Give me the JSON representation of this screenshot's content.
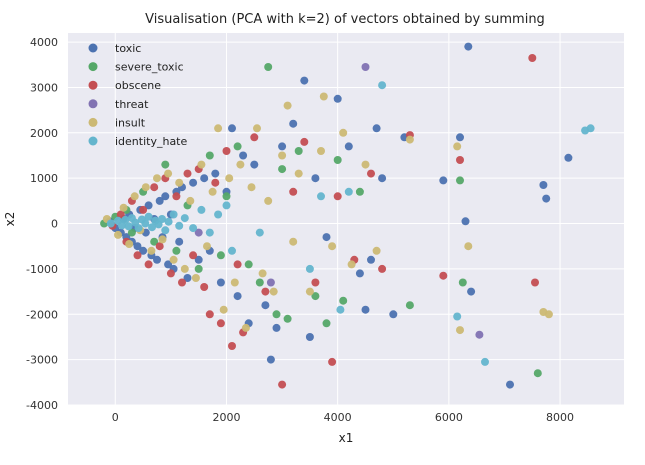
{
  "chart_data": {
    "type": "scatter",
    "title": "Visualisation (PCA with k=2) of vectors obtained by summing",
    "xlabel": "x1",
    "ylabel": "x2",
    "xlim": [
      -850,
      9150
    ],
    "ylim": [
      -4000,
      4200
    ],
    "xticks": [
      0,
      2000,
      4000,
      6000,
      8000
    ],
    "yticks": [
      -4000,
      -3000,
      -2000,
      -1000,
      0,
      1000,
      2000,
      3000,
      4000
    ],
    "grid": true,
    "background": "#eaeaf2",
    "legend_position": "top-left",
    "series": [
      {
        "name": "toxic",
        "color": "#4c72b0",
        "points": [
          [
            -100,
            50
          ],
          [
            0,
            -100
          ],
          [
            100,
            -200
          ],
          [
            150,
            100
          ],
          [
            200,
            -300
          ],
          [
            250,
            200
          ],
          [
            300,
            -400
          ],
          [
            350,
            -100
          ],
          [
            400,
            -500
          ],
          [
            450,
            300
          ],
          [
            500,
            -600
          ],
          [
            550,
            -200
          ],
          [
            600,
            400
          ],
          [
            650,
            -700
          ],
          [
            700,
            100
          ],
          [
            750,
            -800
          ],
          [
            800,
            500
          ],
          [
            850,
            -300
          ],
          [
            900,
            600
          ],
          [
            950,
            -900
          ],
          [
            1000,
            200
          ],
          [
            1050,
            -1000
          ],
          [
            1100,
            700
          ],
          [
            1150,
            -400
          ],
          [
            1200,
            800
          ],
          [
            1300,
            -1200
          ],
          [
            1400,
            900
          ],
          [
            1500,
            -800
          ],
          [
            1600,
            1000
          ],
          [
            1700,
            -600
          ],
          [
            1800,
            1100
          ],
          [
            1900,
            -1300
          ],
          [
            2000,
            700
          ],
          [
            2100,
            2100
          ],
          [
            2200,
            -1600
          ],
          [
            2300,
            1500
          ],
          [
            2400,
            -2200
          ],
          [
            2500,
            1300
          ],
          [
            2700,
            -1800
          ],
          [
            2800,
            -3000
          ],
          [
            2900,
            -2300
          ],
          [
            3000,
            1700
          ],
          [
            3200,
            2200
          ],
          [
            3400,
            3150
          ],
          [
            3500,
            -2500
          ],
          [
            3600,
            1000
          ],
          [
            3800,
            -300
          ],
          [
            4000,
            2750
          ],
          [
            4200,
            1700
          ],
          [
            4400,
            -1100
          ],
          [
            4500,
            -1900
          ],
          [
            4600,
            -800
          ],
          [
            4700,
            2100
          ],
          [
            4800,
            1000
          ],
          [
            5000,
            -2000
          ],
          [
            5200,
            1900
          ],
          [
            5900,
            950
          ],
          [
            6200,
            1900
          ],
          [
            6300,
            50
          ],
          [
            6350,
            3900
          ],
          [
            6400,
            -1500
          ],
          [
            7100,
            -3550
          ],
          [
            7700,
            850
          ],
          [
            7750,
            550
          ],
          [
            8150,
            1450
          ]
        ]
      },
      {
        "name": "severe_toxic",
        "color": "#55a868",
        "points": [
          [
            -200,
            0
          ],
          [
            0,
            150
          ],
          [
            200,
            300
          ],
          [
            300,
            -200
          ],
          [
            500,
            700
          ],
          [
            700,
            -400
          ],
          [
            900,
            1300
          ],
          [
            1100,
            -600
          ],
          [
            1300,
            400
          ],
          [
            1500,
            -1000
          ],
          [
            1700,
            1500
          ],
          [
            1900,
            -700
          ],
          [
            2000,
            600
          ],
          [
            2200,
            1700
          ],
          [
            2400,
            -900
          ],
          [
            2600,
            -1300
          ],
          [
            2750,
            3450
          ],
          [
            2900,
            -2000
          ],
          [
            3000,
            1200
          ],
          [
            3100,
            -2100
          ],
          [
            3300,
            1600
          ],
          [
            3600,
            -1600
          ],
          [
            3800,
            -2200
          ],
          [
            4000,
            1400
          ],
          [
            4100,
            -1700
          ],
          [
            4400,
            700
          ],
          [
            5300,
            -1800
          ],
          [
            6200,
            950
          ],
          [
            6250,
            -1300
          ],
          [
            7600,
            -3300
          ]
        ]
      },
      {
        "name": "obscene",
        "color": "#c44e52",
        "points": [
          [
            -50,
            -50
          ],
          [
            100,
            200
          ],
          [
            200,
            -400
          ],
          [
            300,
            500
          ],
          [
            400,
            -700
          ],
          [
            500,
            300
          ],
          [
            600,
            -900
          ],
          [
            700,
            800
          ],
          [
            800,
            -500
          ],
          [
            900,
            1000
          ],
          [
            1000,
            -1100
          ],
          [
            1100,
            600
          ],
          [
            1200,
            -1300
          ],
          [
            1300,
            1100
          ],
          [
            1400,
            -700
          ],
          [
            1500,
            1200
          ],
          [
            1600,
            -1400
          ],
          [
            1700,
            -2000
          ],
          [
            1800,
            900
          ],
          [
            1900,
            -2200
          ],
          [
            2000,
            1600
          ],
          [
            2100,
            -2700
          ],
          [
            2200,
            -900
          ],
          [
            2300,
            -2400
          ],
          [
            2500,
            1900
          ],
          [
            2700,
            -1500
          ],
          [
            3000,
            -3550
          ],
          [
            3200,
            700
          ],
          [
            3400,
            1800
          ],
          [
            3600,
            -1300
          ],
          [
            3900,
            -3050
          ],
          [
            4000,
            600
          ],
          [
            4300,
            -800
          ],
          [
            4600,
            1100
          ],
          [
            4800,
            -1000
          ],
          [
            5300,
            1950
          ],
          [
            5900,
            -1150
          ],
          [
            6200,
            1400
          ],
          [
            7500,
            3650
          ],
          [
            7550,
            -1300
          ]
        ]
      },
      {
        "name": "threat",
        "color": "#8172b2",
        "points": [
          [
            1500,
            -200
          ],
          [
            2800,
            -1300
          ],
          [
            4500,
            3450
          ],
          [
            6550,
            -2450
          ]
        ]
      },
      {
        "name": "insult",
        "color": "#ccb974",
        "points": [
          [
            -150,
            100
          ],
          [
            50,
            -250
          ],
          [
            150,
            350
          ],
          [
            250,
            -450
          ],
          [
            350,
            600
          ],
          [
            450,
            -150
          ],
          [
            550,
            800
          ],
          [
            650,
            -600
          ],
          [
            750,
            1000
          ],
          [
            850,
            -350
          ],
          [
            950,
            1100
          ],
          [
            1050,
            -800
          ],
          [
            1150,
            900
          ],
          [
            1250,
            -1000
          ],
          [
            1350,
            500
          ],
          [
            1450,
            -1200
          ],
          [
            1550,
            1300
          ],
          [
            1650,
            -500
          ],
          [
            1750,
            700
          ],
          [
            1850,
            2100
          ],
          [
            1950,
            -1900
          ],
          [
            2050,
            1000
          ],
          [
            2150,
            -1300
          ],
          [
            2250,
            1300
          ],
          [
            2350,
            -2300
          ],
          [
            2450,
            800
          ],
          [
            2550,
            2100
          ],
          [
            2650,
            -1100
          ],
          [
            2750,
            500
          ],
          [
            2850,
            -1500
          ],
          [
            3000,
            1500
          ],
          [
            3100,
            2600
          ],
          [
            3200,
            -400
          ],
          [
            3300,
            1100
          ],
          [
            3500,
            -1500
          ],
          [
            3700,
            1600
          ],
          [
            3750,
            2800
          ],
          [
            3900,
            -500
          ],
          [
            4100,
            2000
          ],
          [
            4250,
            -900
          ],
          [
            4500,
            1300
          ],
          [
            4700,
            -600
          ],
          [
            5300,
            1850
          ],
          [
            6150,
            1700
          ],
          [
            6200,
            -2350
          ],
          [
            6350,
            -500
          ],
          [
            7700,
            -1950
          ],
          [
            7800,
            -2000
          ]
        ]
      },
      {
        "name": "identity_hate",
        "color": "#64b5cd",
        "points": [
          [
            -80,
            0
          ],
          [
            50,
            60
          ],
          [
            120,
            -40
          ],
          [
            180,
            80
          ],
          [
            240,
            -60
          ],
          [
            300,
            120
          ],
          [
            360,
            20
          ],
          [
            420,
            -100
          ],
          [
            480,
            90
          ],
          [
            540,
            0
          ],
          [
            600,
            150
          ],
          [
            660,
            -80
          ],
          [
            720,
            60
          ],
          [
            780,
            -20
          ],
          [
            840,
            100
          ],
          [
            900,
            -150
          ],
          [
            960,
            40
          ],
          [
            1050,
            200
          ],
          [
            1150,
            -50
          ],
          [
            1250,
            120
          ],
          [
            1400,
            -100
          ],
          [
            1550,
            300
          ],
          [
            1700,
            -200
          ],
          [
            1850,
            200
          ],
          [
            2000,
            400
          ],
          [
            2100,
            -600
          ],
          [
            2600,
            -200
          ],
          [
            3500,
            -1000
          ],
          [
            3700,
            600
          ],
          [
            4050,
            -1900
          ],
          [
            4200,
            700
          ],
          [
            4800,
            3050
          ],
          [
            6150,
            -2050
          ],
          [
            6650,
            -3050
          ],
          [
            8450,
            2050
          ],
          [
            8550,
            2100
          ]
        ]
      }
    ]
  }
}
